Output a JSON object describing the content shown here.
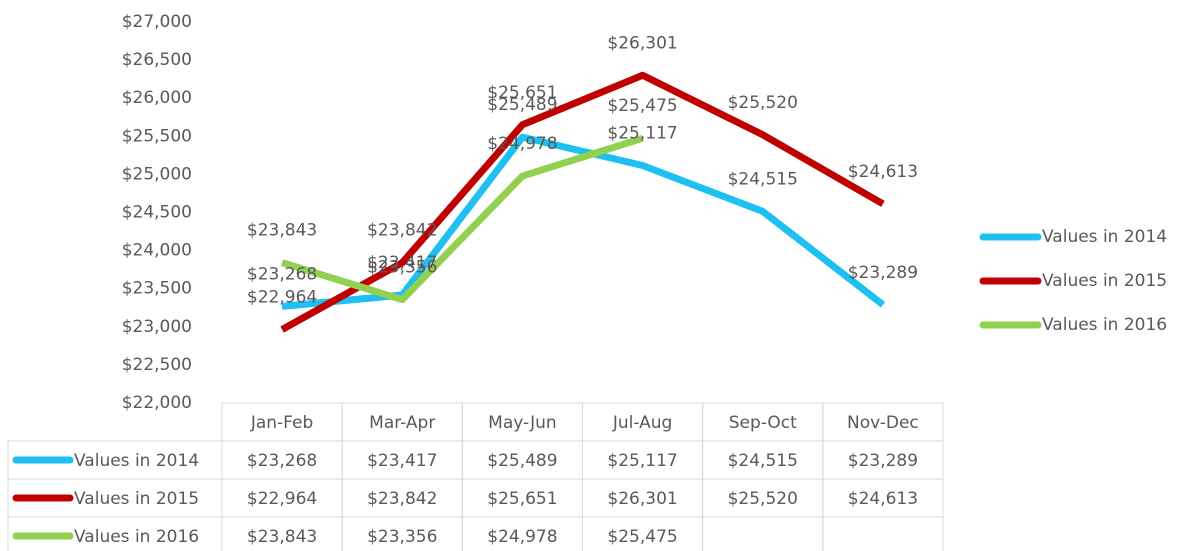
{
  "chart_data": {
    "type": "line",
    "categories": [
      "Jan-Feb",
      "Mar-Apr",
      "May-Jun",
      "Jul-Aug",
      "Sep-Oct",
      "Nov-Dec"
    ],
    "series": [
      {
        "name": "Values in 2014",
        "color": "#1ec0f2",
        "values": [
          23268,
          23417,
          25489,
          25117,
          24515,
          23289
        ],
        "value_labels": [
          "$23,268",
          "$23,417",
          "$25,489",
          "$25,117",
          "$24,515",
          "$23,289"
        ]
      },
      {
        "name": "Values in 2015",
        "color": "#c00000",
        "values": [
          22964,
          23842,
          25651,
          26301,
          25520,
          24613
        ],
        "value_labels": [
          "$22,964",
          "$23,842",
          "$25,651",
          "$26,301",
          "$25,520",
          "$24,613"
        ]
      },
      {
        "name": "Values in 2016",
        "color": "#92d050",
        "values": [
          23843,
          23356,
          24978,
          25475,
          null,
          null
        ],
        "value_labels": [
          "$23,843",
          "$23,356",
          "$24,978",
          "$25,475",
          null,
          null
        ]
      }
    ],
    "ylim": [
      22000,
      27000
    ],
    "yticks": [
      {
        "value": 22000,
        "label": "$22,000"
      },
      {
        "value": 22500,
        "label": "$22,500"
      },
      {
        "value": 23000,
        "label": "$23,000"
      },
      {
        "value": 23500,
        "label": "$23,500"
      },
      {
        "value": 24000,
        "label": "$24,000"
      },
      {
        "value": 24500,
        "label": "$24,500"
      },
      {
        "value": 25000,
        "label": "$25,000"
      },
      {
        "value": 25500,
        "label": "$25,500"
      },
      {
        "value": 26000,
        "label": "$26,000"
      },
      {
        "value": 26500,
        "label": "$26,500"
      },
      {
        "value": 27000,
        "label": "$27,000"
      }
    ],
    "grid": false,
    "legend": "right",
    "data_table": true
  }
}
